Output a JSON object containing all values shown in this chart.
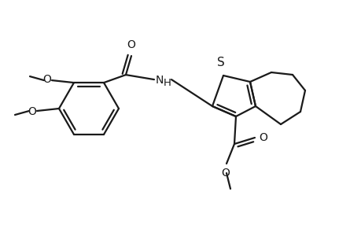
{
  "background_color": "#ffffff",
  "line_color": "#1a1a1a",
  "line_width": 1.6,
  "font_size": 10,
  "figsize": [
    4.6,
    3.0
  ],
  "dpi": 100,
  "xlim": [
    0,
    460
  ],
  "ylim": [
    0,
    300
  ]
}
